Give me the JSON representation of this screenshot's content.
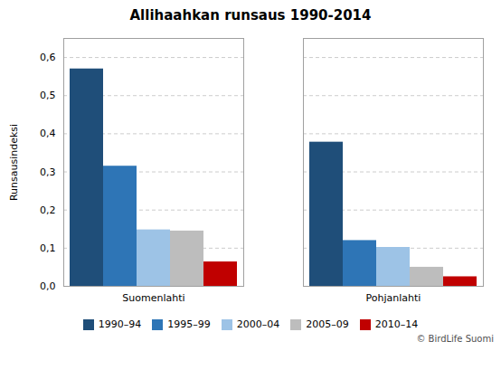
{
  "chart_data": {
    "type": "bar",
    "title": "Allihaahkan runsaus 1990-2014",
    "ylabel": "Runsausindeksi",
    "categories": [
      "Suomenlahti",
      "Pohjanlahti"
    ],
    "series": [
      {
        "name": "1990–94",
        "color": "#1f4e79",
        "values": [
          0.57,
          0.378
        ]
      },
      {
        "name": "1995–99",
        "color": "#2e75b6",
        "values": [
          0.315,
          0.12
        ]
      },
      {
        "name": "2000–04",
        "color": "#9dc3e6",
        "values": [
          0.148,
          0.102
        ]
      },
      {
        "name": "2005–09",
        "color": "#bdbdbd",
        "values": [
          0.145,
          0.05
        ]
      },
      {
        "name": "2010–14",
        "color": "#c00000",
        "values": [
          0.064,
          0.025
        ]
      }
    ],
    "ylim": [
      0,
      0.65
    ],
    "yticks": [
      {
        "value": 0.0,
        "label": "0,0"
      },
      {
        "value": 0.1,
        "label": "0,1"
      },
      {
        "value": 0.2,
        "label": "0,2"
      },
      {
        "value": 0.3,
        "label": "0,3"
      },
      {
        "value": 0.4,
        "label": "0,4"
      },
      {
        "value": 0.5,
        "label": "0,5"
      },
      {
        "value": 0.6,
        "label": "0,6"
      }
    ],
    "grid": true,
    "legend": "bottom",
    "annotations": [
      "© BirdLife Suomi"
    ]
  }
}
